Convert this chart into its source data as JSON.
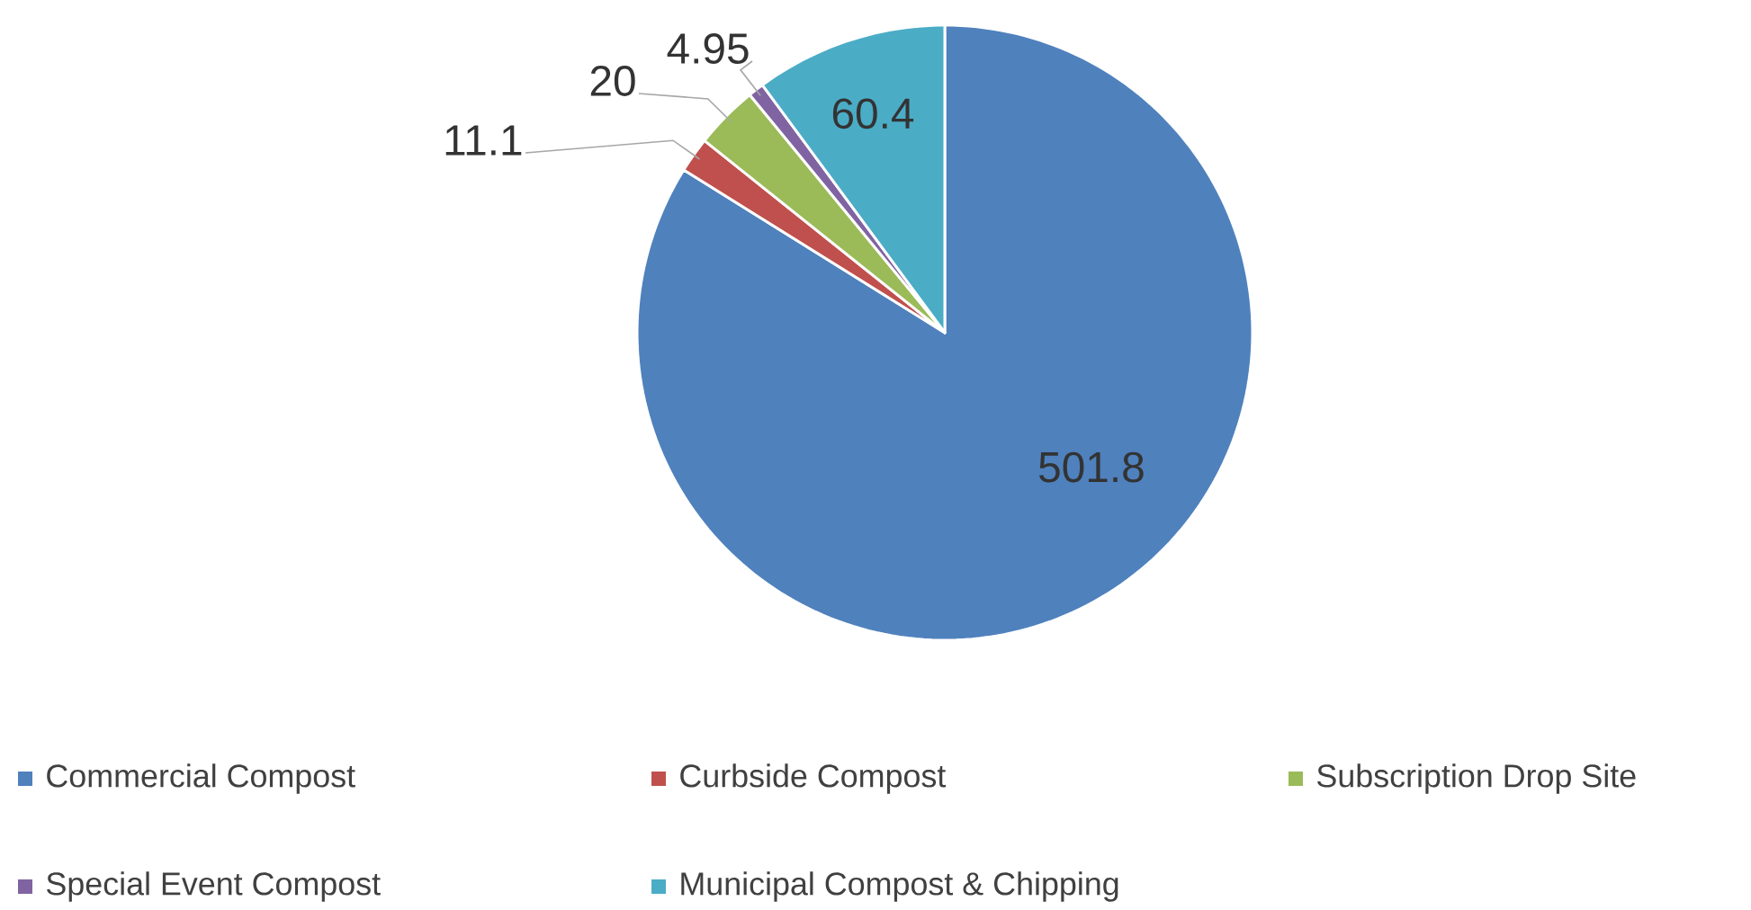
{
  "chart_data": {
    "type": "pie",
    "categories": [
      "Commercial Compost",
      "Curbside Compost",
      "Subscription Drop Site",
      "Special Event Compost",
      "Municipal Compost & Chipping"
    ],
    "values": [
      501.8,
      11.1,
      20,
      4.95,
      60.4
    ],
    "colors": [
      "#4f81bd",
      "#c0504d",
      "#9bbb59",
      "#8064a2",
      "#4bacc6"
    ],
    "data_labels": true,
    "legend": "bottom"
  }
}
